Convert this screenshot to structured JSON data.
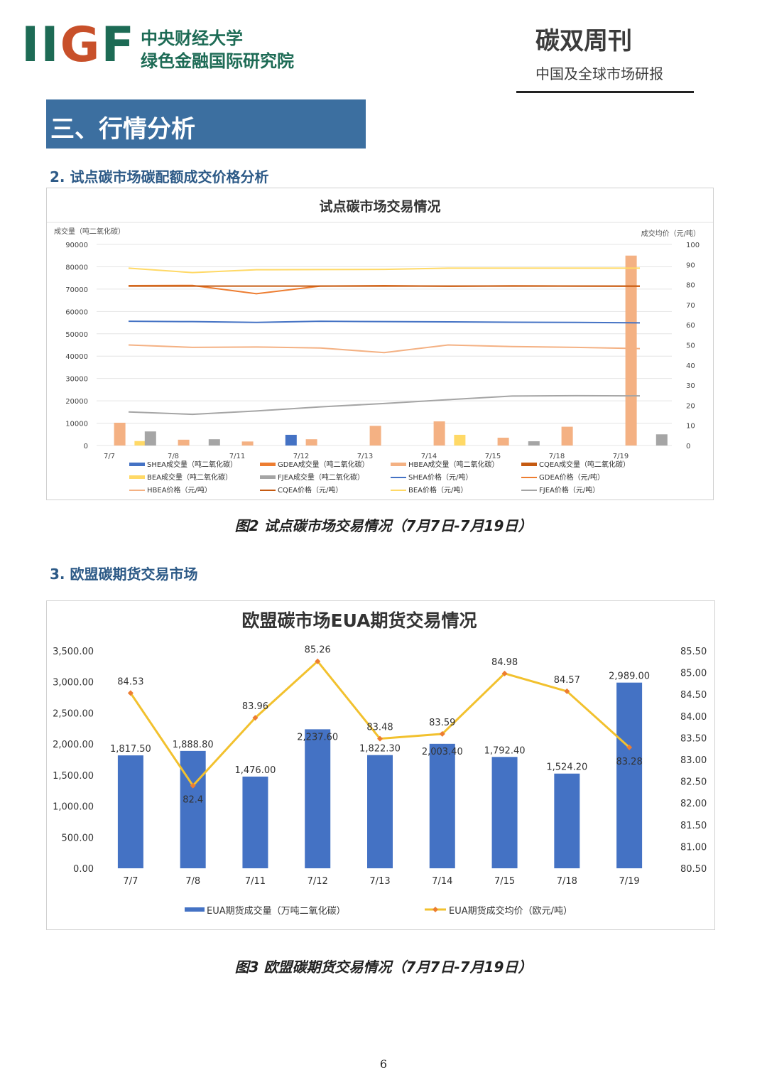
{
  "header": {
    "logo_text": "IIGF",
    "org_line1": "中央财经大学",
    "org_line2": "绿色金融国际研究院",
    "pub_title": "碳双周刊",
    "pub_subtitle": "中国及全球市场研报"
  },
  "section_title": "三、行情分析",
  "subsection1": "2. 试点碳市场碳配额成交价格分析",
  "subsection2": "3. 欧盟碳期货交易市场",
  "caption1": "图2 试点碳市场交易情况（7月7日-7月19日）",
  "caption2": "图3 欧盟碳期货交易情况（7月7日-7月19日）",
  "page_number": "6",
  "chart_data": [
    {
      "type": "bar",
      "title": "试点碳市场交易情况",
      "ylabel": "成交量（吨二氧化碳）",
      "y2label": "成交均价（元/吨）",
      "ylim": [
        0,
        90000
      ],
      "y2lim": [
        0,
        100
      ],
      "yticks": [
        "0",
        "10000",
        "20000",
        "30000",
        "40000",
        "50000",
        "60000",
        "70000",
        "80000",
        "90000"
      ],
      "y2ticks": [
        "0",
        "10",
        "20",
        "30",
        "40",
        "50",
        "60",
        "70",
        "80",
        "90",
        "100"
      ],
      "categories": [
        "7/7",
        "7/8",
        "7/11",
        "7/12",
        "7/13",
        "7/14",
        "7/15",
        "7/18",
        "7/19"
      ],
      "bar_series": [
        {
          "name": "SHEA成交量（吨二氧化碳）",
          "color": "#4472c4",
          "values": [
            0,
            0,
            0,
            4800,
            0,
            0,
            0,
            0,
            0
          ]
        },
        {
          "name": "GDEA成交量（吨二氧化碳）",
          "color": "#ed7d31",
          "values": [
            0,
            0,
            0,
            0,
            0,
            0,
            0,
            0,
            0
          ]
        },
        {
          "name": "HBEA成交量（吨二氧化碳）",
          "color": "#f4b183",
          "values": [
            10200,
            2600,
            1800,
            2800,
            8800,
            10800,
            3500,
            8400,
            85000
          ]
        },
        {
          "name": "CQEA成交量（吨二氧化碳）",
          "color": "#c55a11",
          "values": [
            0,
            0,
            0,
            0,
            0,
            0,
            0,
            0,
            0
          ]
        },
        {
          "name": "BEA成交量（吨二氧化碳）",
          "color": "#ffd966",
          "values": [
            2000,
            0,
            0,
            0,
            0,
            4800,
            0,
            0,
            0
          ]
        },
        {
          "name": "FJEA成交量（吨二氧化碳）",
          "color": "#a5a5a5",
          "values": [
            6300,
            2800,
            0,
            0,
            0,
            0,
            1900,
            0,
            5000
          ]
        }
      ],
      "line_series": [
        {
          "name": "SHEA价格（元/吨）",
          "color": "#4472c4",
          "values": [
            61.8,
            61.6,
            61.2,
            61.8,
            61.6,
            61.5,
            61.3,
            61.2,
            61.0
          ]
        },
        {
          "name": "GDEA价格（元/吨）",
          "color": "#ed7d31",
          "values": [
            79.5,
            79.6,
            75.5,
            79.3,
            79.5,
            79.2,
            79.4,
            79.3,
            79.2
          ]
        },
        {
          "name": "HBEA价格（元/吨）",
          "color": "#f4b183",
          "values": [
            50.0,
            48.8,
            49.0,
            48.5,
            46.2,
            50.0,
            49.2,
            48.8,
            48.2
          ]
        },
        {
          "name": "CQEA价格（元/吨）",
          "color": "#c55a11",
          "values": [
            79.3,
            79.3,
            79.3,
            79.3,
            79.3,
            79.3,
            79.3,
            79.3,
            79.3
          ]
        },
        {
          "name": "BEA价格（元/吨）",
          "color": "#ffd966",
          "values": [
            88.2,
            86.0,
            87.4,
            87.5,
            87.6,
            88.2,
            88.2,
            88.2,
            88.2
          ]
        },
        {
          "name": "FJEA价格（元/吨）",
          "color": "#a5a5a5",
          "values": [
            16.7,
            15.5,
            17.2,
            19.2,
            20.9,
            22.8,
            24.6,
            24.8,
            24.7
          ]
        }
      ],
      "legend": [
        "SHEA成交量（吨二氧化碳）",
        "GDEA成交量（吨二氧化碳）",
        "HBEA成交量（吨二氧化碳）",
        "CQEA成交量（吨二氧化碳）",
        "BEA成交量（吨二氧化碳）",
        "FJEA成交量（吨二氧化碳）",
        "SHEA价格（元/吨）",
        "GDEA价格（元/吨）",
        "HBEA价格（元/吨）",
        "CQEA价格（元/吨）",
        "BEA价格（元/吨）",
        "FJEA价格（元/吨）"
      ],
      "legend_position": "bottom"
    },
    {
      "type": "bar",
      "title": "欧盟碳市场EUA期货交易情况",
      "ylim": [
        0,
        3500
      ],
      "y2lim": [
        80.5,
        85.5
      ],
      "yticks": [
        "0.00",
        "500.00",
        "1,000.00",
        "1,500.00",
        "2,000.00",
        "2,500.00",
        "3,000.00",
        "3,500.00"
      ],
      "y2ticks": [
        "80.50",
        "81.00",
        "81.50",
        "82.00",
        "82.50",
        "83.00",
        "83.50",
        "84.00",
        "84.50",
        "85.00",
        "85.50"
      ],
      "categories": [
        "7/7",
        "7/8",
        "7/11",
        "7/12",
        "7/13",
        "7/14",
        "7/15",
        "7/18",
        "7/19"
      ],
      "bar_series": {
        "name": "EUA期货成交量（万吨二氧化碳）",
        "color": "#4472c4",
        "values": [
          1817.5,
          1888.8,
          1476.0,
          2237.6,
          1822.3,
          2003.4,
          1792.4,
          1524.2,
          2989.0
        ],
        "labels": [
          "1,817.50",
          "1,888.80",
          "1,476.00",
          "2,237.60",
          "1,822.30",
          "2,003.40",
          "1,792.40",
          "1,524.20",
          "2,989.00"
        ]
      },
      "line_series": {
        "name": "EUA期货成交均价（欧元/吨）",
        "color": "#f2c12e",
        "marker_color": "#ed7d31",
        "values": [
          84.53,
          82.4,
          83.96,
          85.26,
          83.48,
          83.59,
          84.98,
          84.57,
          83.28
        ],
        "labels": [
          "84.53",
          "82.4",
          "83.96",
          "85.26",
          "83.48",
          "83.59",
          "84.98",
          "84.57",
          "83.28"
        ]
      },
      "legend_position": "bottom"
    }
  ]
}
